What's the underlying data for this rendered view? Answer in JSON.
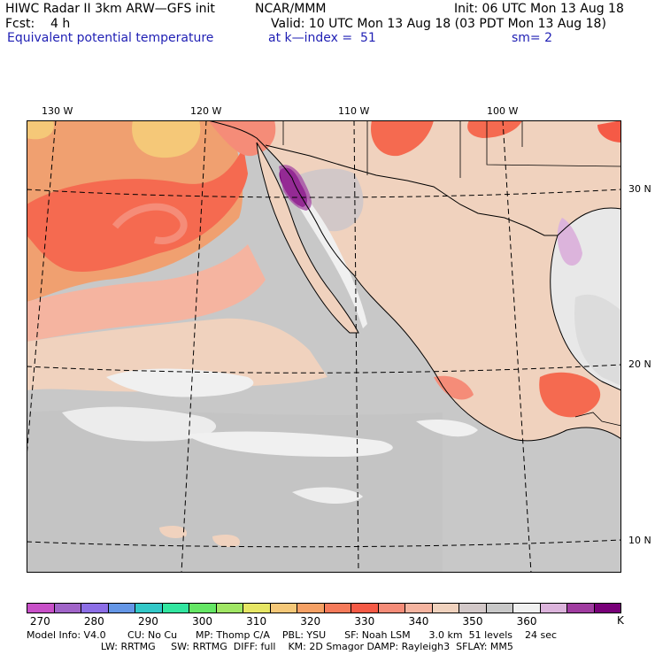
{
  "header": {
    "line1_left": "HIWC Radar II 3km ARW—GFS init",
    "line1_mid": "NCAR/MMM",
    "line1_right": "Init: 06 UTC Mon 13 Aug 18",
    "line2_left": "Fcst:    4 h",
    "line2_right": "Valid: 10 UTC Mon 13 Aug 18 (03 PDT Mon 13 Aug 18)",
    "line3_left": "Equivalent potential temperature",
    "line3_mid": "at k—index =  51",
    "line3_right": "sm= 2"
  },
  "map": {
    "lon_labels": [
      "130 W",
      "120 W",
      "110 W",
      "100 W"
    ],
    "lat_labels": [
      "30 N",
      "20 N",
      "10 N"
    ],
    "colors": {
      "ocean_gray": "#c8c8c8",
      "warm_ocean": "#f0a070",
      "hot": "#f56a50",
      "orange": "#f5b890",
      "light": "#f0d8c0",
      "white": "#f0f0f0",
      "purple": "#7a207a",
      "lilac": "#dcb4dc"
    }
  },
  "colorbar": {
    "colors": [
      "#c850c8",
      "#a064c8",
      "#8c6ee6",
      "#6496e6",
      "#32c8c8",
      "#32e6a0",
      "#64e664",
      "#a0e664",
      "#e6e664",
      "#f5c878",
      "#f5a064",
      "#f57a5a",
      "#f55a46",
      "#f58c78",
      "#f5b4a0",
      "#f0d2be",
      "#d2c8c8",
      "#c8c8c8",
      "#f0f0f0",
      "#dcb4dc",
      "#a03ca0",
      "#780078"
    ],
    "labels": [
      "270",
      "280",
      "290",
      "300",
      "310",
      "320",
      "330",
      "340",
      "350",
      "360"
    ],
    "unit": "K"
  },
  "footer": {
    "line1": "Model Info: V4.0       CU: No Cu      MP: Thomp C/A    PBL: YSU      SF: Noah LSM      3.0 km  51 levels    24 sec",
    "line2": "                        LW: RRTMG     SW: RRTMG  DIFF: full    KM: 2D Smagor DAMP: Rayleigh3  SFLAY: MM5"
  }
}
